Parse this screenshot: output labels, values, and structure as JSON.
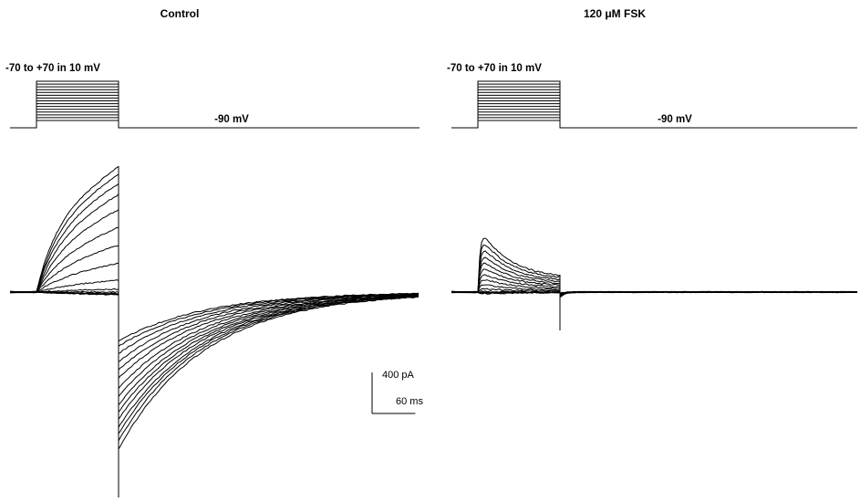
{
  "chart_data": [
    {
      "type": "line",
      "title": "Control",
      "xlabel": "",
      "ylabel": "",
      "protocol": {
        "step_label": "-70 to +70 in 10 mV",
        "holding_label": "-90 mV",
        "step_potentials_mV": [
          -70,
          -60,
          -50,
          -40,
          -30,
          -20,
          -10,
          0,
          10,
          20,
          30,
          40,
          50,
          60,
          70
        ],
        "holding_mV": -90,
        "step_start_ms": 0,
        "step_end_ms": 120,
        "sweep_end_ms": 635
      },
      "series": [
        {
          "values": [
            -30,
            -25,
            -20,
            -15,
            0,
            30,
            120,
            290,
            470,
            645,
            820,
            965,
            1070,
            1160,
            1230
          ]
        },
        {
          "values": [
            -300,
            -350,
            -420,
            -500,
            -580,
            -660,
            -760,
            -840,
            -920,
            -990,
            -1060,
            -1140,
            -1200,
            -1270,
            -1350
          ]
        }
      ],
      "scale_bar": {
        "current_label": "400 pA",
        "time_label": "60 ms",
        "current_pA": 400,
        "time_ms": 60
      }
    },
    {
      "type": "line",
      "title": "120 μM FSK",
      "xlabel": "",
      "ylabel": "",
      "protocol": {
        "step_label": "-70 to +70 in 10 mV",
        "holding_label": "-90 mV",
        "step_potentials_mV": [
          -70,
          -60,
          -50,
          -40,
          -30,
          -20,
          -10,
          0,
          10,
          20,
          30,
          40,
          50,
          60,
          70
        ],
        "holding_mV": -90,
        "step_start_ms": 0,
        "step_end_ms": 120,
        "sweep_end_ms": 590
      },
      "series": [
        {
          "values": [
            -20,
            -15,
            -10,
            -5,
            10,
            40,
            90,
            150,
            210,
            280,
            350,
            420,
            500,
            580,
            660
          ]
        },
        {
          "values": [
            -15,
            -20,
            -25,
            -30,
            -35,
            -40,
            -45,
            -50,
            -55,
            -60,
            -65,
            -70,
            -75,
            -80,
            -85
          ]
        }
      ],
      "scale_bar": null
    }
  ]
}
